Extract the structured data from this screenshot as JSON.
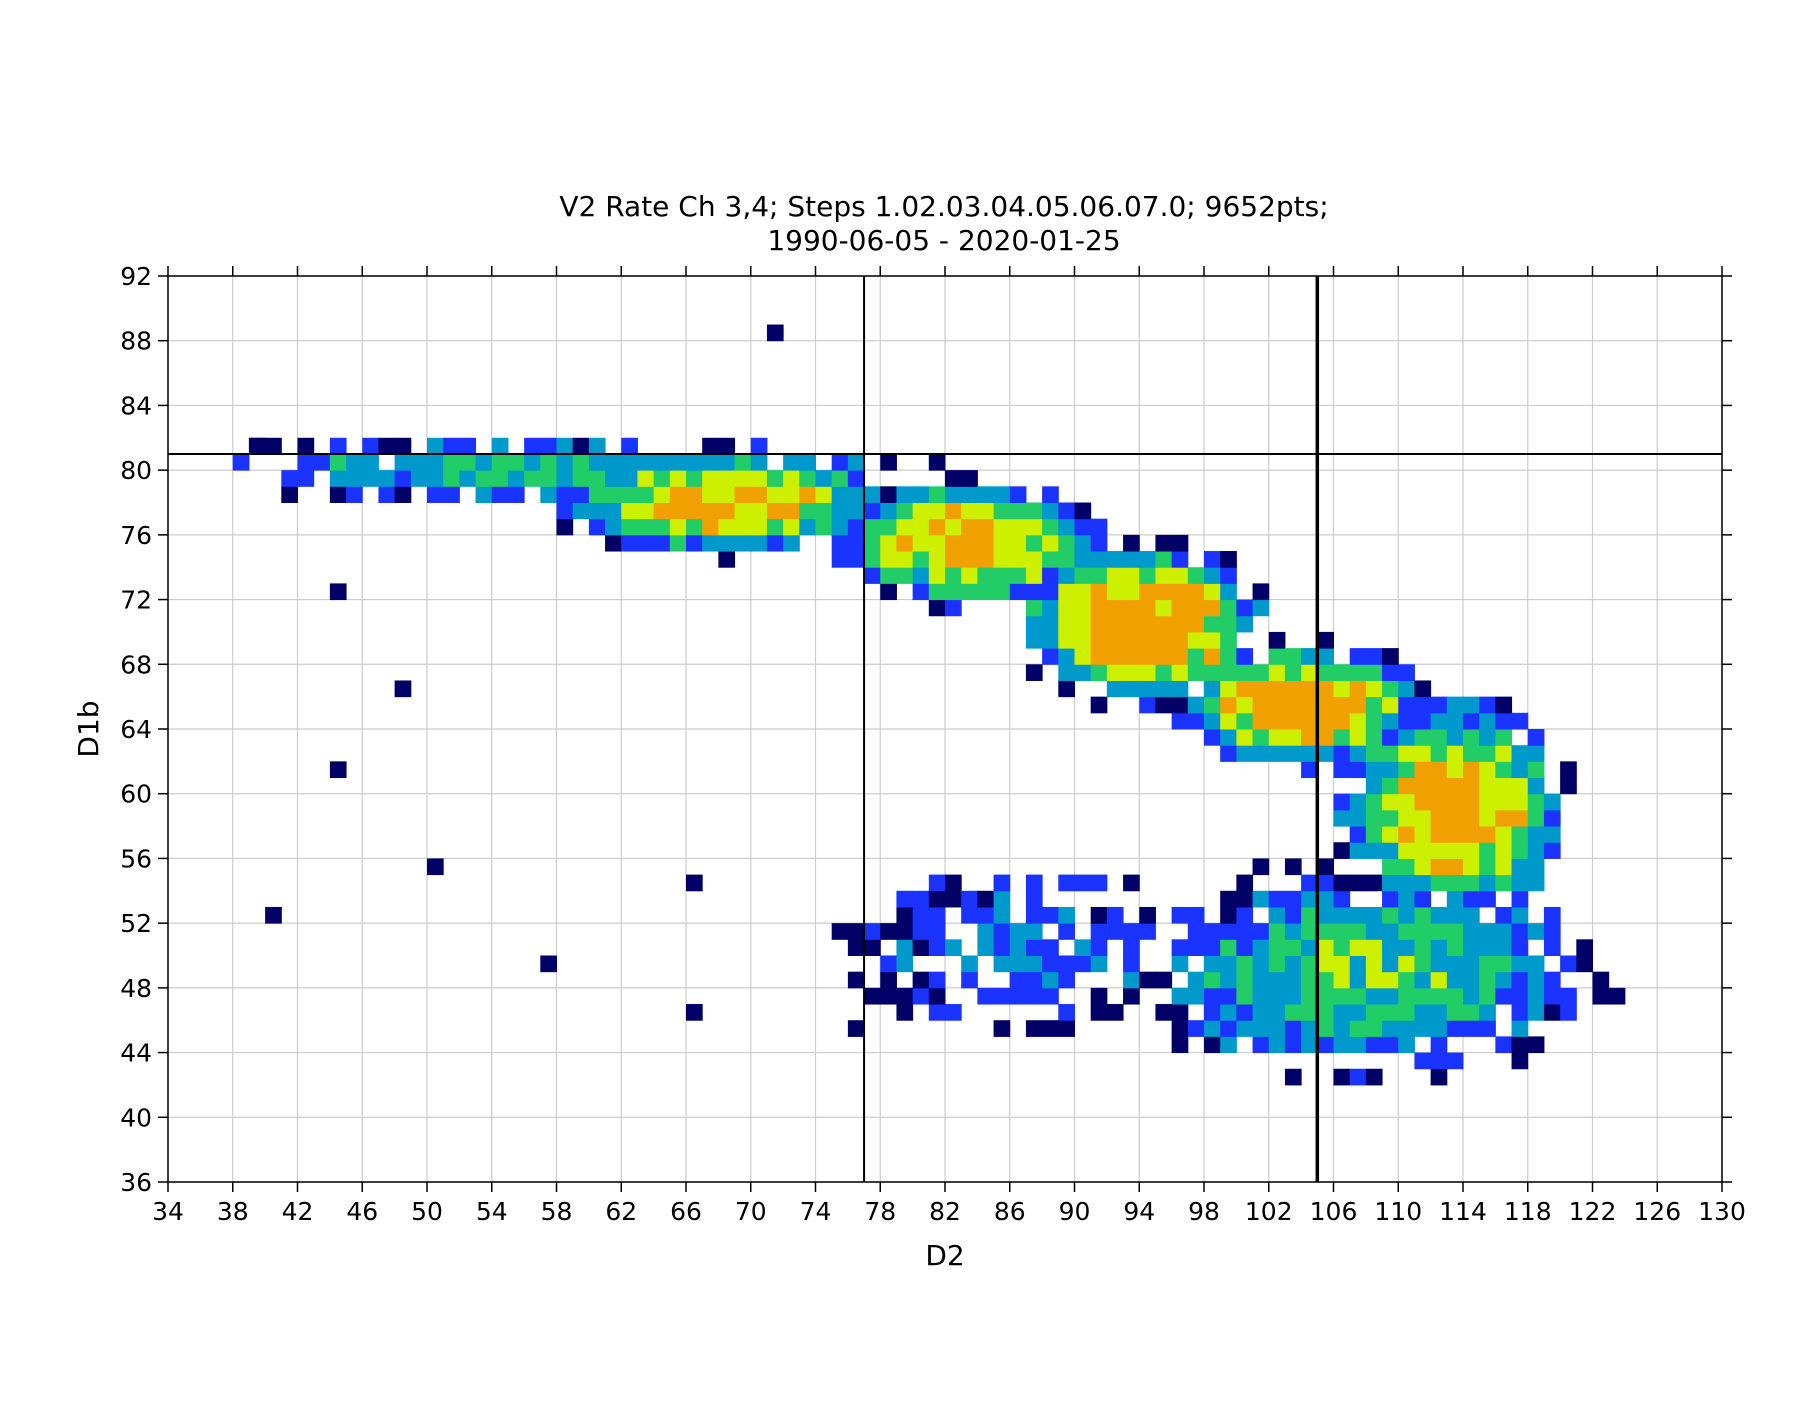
{
  "chart_data": {
    "type": "heatmap",
    "title": "V2 Rate Ch 3,4; Steps 1.02.03.04.05.06.07.0; 9652pts;",
    "subtitle": "1990-06-05 - 2020-01-25",
    "xlabel": "D2",
    "ylabel": "D1b",
    "xlim": [
      34,
      130
    ],
    "ylim": [
      36,
      92
    ],
    "xticks": [
      34,
      38,
      42,
      46,
      50,
      54,
      58,
      62,
      66,
      70,
      74,
      78,
      82,
      86,
      90,
      94,
      98,
      102,
      106,
      110,
      114,
      118,
      122,
      126,
      130
    ],
    "yticks": [
      36,
      40,
      44,
      48,
      52,
      56,
      60,
      64,
      68,
      72,
      76,
      80,
      84,
      88,
      92
    ],
    "grid": true,
    "colormap": [
      "#000066",
      "#1a33ff",
      "#0099cc",
      "#22cc66",
      "#ccf000",
      "#f0a000"
    ],
    "reference_lines": {
      "vertical": [
        77,
        105
      ],
      "horizontal": [
        81
      ]
    },
    "density_bands": [
      {
        "x": [
          38,
          77
        ],
        "y": [
          79,
          81
        ],
        "level": 0.45
      },
      {
        "x": [
          60,
          77
        ],
        "y": [
          76,
          80
        ],
        "level": 0.75
      },
      {
        "x": [
          77,
          90
        ],
        "y": [
          73,
          78
        ],
        "level": 0.8
      },
      {
        "x": [
          88,
          100
        ],
        "y": [
          67,
          74
        ],
        "level": 0.85
      },
      {
        "x": [
          98,
          110
        ],
        "y": [
          63,
          68
        ],
        "level": 0.85
      },
      {
        "x": [
          108,
          119
        ],
        "y": [
          54,
          64
        ],
        "level": 0.8
      },
      {
        "x": [
          96,
          120
        ],
        "y": [
          44,
          54
        ],
        "level": 0.5
      },
      {
        "x": [
          78,
          96
        ],
        "y": [
          47,
          54
        ],
        "level": 0.3
      }
    ],
    "peak": {
      "x": 98.5,
      "y": 68.5,
      "level": 1.0
    },
    "outliers": [
      [
        71,
        88
      ],
      [
        44,
        61
      ],
      [
        40,
        52
      ],
      [
        50,
        55
      ],
      [
        57,
        49
      ],
      [
        66,
        46
      ],
      [
        76,
        45
      ],
      [
        66,
        54
      ],
      [
        48,
        66
      ],
      [
        44,
        72
      ],
      [
        39,
        81
      ]
    ]
  }
}
